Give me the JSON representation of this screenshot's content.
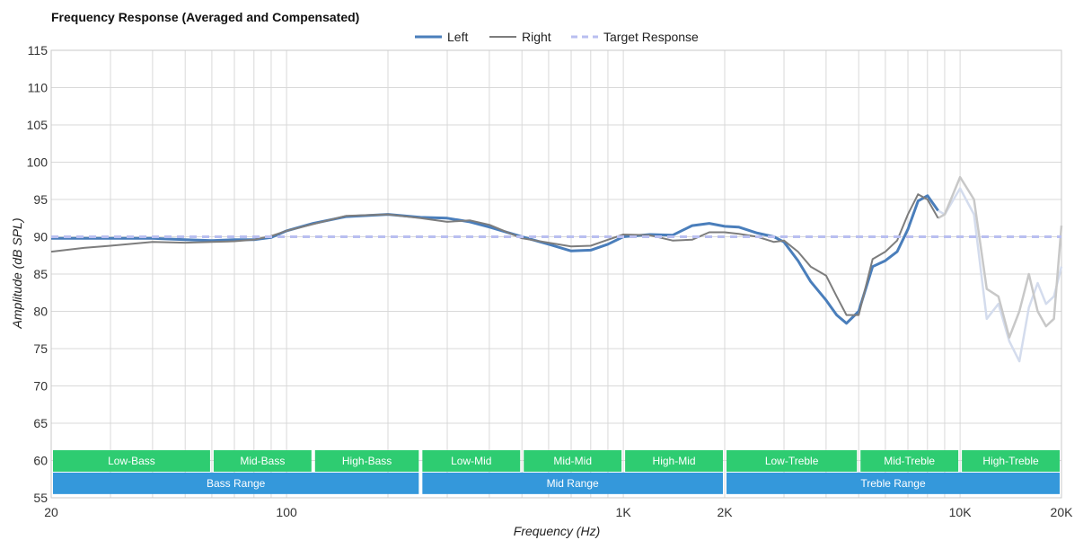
{
  "chart_data": {
    "type": "line",
    "title": "Frequency Response (Averaged and Compensated)",
    "xlabel": "Frequency (Hz)",
    "ylabel": "Amplitude (dB SPL)",
    "xscale": "log",
    "xlim": [
      20,
      20000
    ],
    "ylim": [
      55,
      115
    ],
    "x_ticks": [
      20,
      100,
      1000,
      2000,
      10000,
      20000
    ],
    "x_tick_labels": [
      "20",
      "100",
      "1K",
      "2K",
      "10K",
      "20K"
    ],
    "y_ticks": [
      55,
      60,
      65,
      70,
      75,
      80,
      85,
      90,
      95,
      100,
      105,
      110,
      115
    ],
    "grid": true,
    "legend_position": "top-center",
    "series": [
      {
        "name": "Left",
        "color": "#4a7ebb",
        "points": [
          [
            20,
            89.8
          ],
          [
            30,
            89.8
          ],
          [
            40,
            89.8
          ],
          [
            50,
            89.6
          ],
          [
            60,
            89.5
          ],
          [
            70,
            89.6
          ],
          [
            80,
            89.6
          ],
          [
            90,
            89.9
          ],
          [
            100,
            90.8
          ],
          [
            120,
            91.8
          ],
          [
            150,
            92.7
          ],
          [
            200,
            93.0
          ],
          [
            250,
            92.6
          ],
          [
            300,
            92.5
          ],
          [
            350,
            92.0
          ],
          [
            400,
            91.3
          ],
          [
            500,
            90.0
          ],
          [
            600,
            89.0
          ],
          [
            700,
            88.1
          ],
          [
            800,
            88.2
          ],
          [
            900,
            89.0
          ],
          [
            1000,
            90.0
          ],
          [
            1200,
            90.3
          ],
          [
            1400,
            90.2
          ],
          [
            1600,
            91.5
          ],
          [
            1800,
            91.8
          ],
          [
            2000,
            91.4
          ],
          [
            2200,
            91.3
          ],
          [
            2500,
            90.5
          ],
          [
            2800,
            90.0
          ],
          [
            3000,
            89.3
          ],
          [
            3300,
            86.8
          ],
          [
            3600,
            84.0
          ],
          [
            4000,
            81.5
          ],
          [
            4300,
            79.5
          ],
          [
            4600,
            78.4
          ],
          [
            5000,
            80.0
          ],
          [
            5500,
            86.0
          ],
          [
            6000,
            86.8
          ],
          [
            6500,
            88.0
          ],
          [
            7000,
            91.0
          ],
          [
            7500,
            94.8
          ],
          [
            8000,
            95.5
          ],
          [
            8600,
            93.5
          ]
        ]
      },
      {
        "name": "Right",
        "color": "#7d7d7d",
        "points": [
          [
            20,
            88.0
          ],
          [
            25,
            88.5
          ],
          [
            30,
            88.8
          ],
          [
            40,
            89.3
          ],
          [
            50,
            89.2
          ],
          [
            60,
            89.3
          ],
          [
            70,
            89.4
          ],
          [
            80,
            89.6
          ],
          [
            90,
            90.1
          ],
          [
            100,
            90.8
          ],
          [
            120,
            91.7
          ],
          [
            150,
            92.8
          ],
          [
            200,
            93.0
          ],
          [
            250,
            92.5
          ],
          [
            300,
            92.0
          ],
          [
            350,
            92.2
          ],
          [
            400,
            91.6
          ],
          [
            500,
            89.8
          ],
          [
            600,
            89.2
          ],
          [
            700,
            88.7
          ],
          [
            800,
            88.8
          ],
          [
            900,
            89.6
          ],
          [
            1000,
            90.3
          ],
          [
            1200,
            90.2
          ],
          [
            1400,
            89.5
          ],
          [
            1600,
            89.6
          ],
          [
            1800,
            90.6
          ],
          [
            2000,
            90.6
          ],
          [
            2200,
            90.4
          ],
          [
            2500,
            90.0
          ],
          [
            2800,
            89.3
          ],
          [
            3000,
            89.5
          ],
          [
            3300,
            88.0
          ],
          [
            3600,
            86.0
          ],
          [
            4000,
            84.8
          ],
          [
            4300,
            82.0
          ],
          [
            4600,
            79.5
          ],
          [
            5000,
            79.5
          ],
          [
            5500,
            87.0
          ],
          [
            6000,
            88.0
          ],
          [
            6500,
            89.5
          ],
          [
            7000,
            93.0
          ],
          [
            7500,
            95.7
          ],
          [
            8000,
            95.0
          ],
          [
            8600,
            92.5
          ]
        ]
      },
      {
        "name": "Target Response",
        "color": "#b9bff0",
        "points": [
          [
            20,
            90
          ],
          [
            20000,
            90
          ]
        ]
      }
    ],
    "faded_extensions": [
      {
        "series": "Left",
        "color": "#d4dced",
        "points": [
          [
            8600,
            93.5
          ],
          [
            9000,
            93.0
          ],
          [
            10000,
            96.5
          ],
          [
            11000,
            93.0
          ],
          [
            12000,
            79.0
          ],
          [
            13000,
            81.0
          ],
          [
            14000,
            76.0
          ],
          [
            15000,
            73.3
          ],
          [
            16000,
            80.5
          ],
          [
            17000,
            83.8
          ],
          [
            18000,
            81.0
          ],
          [
            19000,
            82.0
          ],
          [
            20000,
            86.0
          ]
        ]
      },
      {
        "series": "Right",
        "color": "#c8c8c8",
        "points": [
          [
            8600,
            92.5
          ],
          [
            9000,
            93.0
          ],
          [
            10000,
            98.0
          ],
          [
            11000,
            95.0
          ],
          [
            12000,
            83.0
          ],
          [
            13000,
            82.0
          ],
          [
            14000,
            76.5
          ],
          [
            15000,
            80.0
          ],
          [
            16000,
            85.0
          ],
          [
            17000,
            80.0
          ],
          [
            18000,
            78.0
          ],
          [
            19000,
            79.0
          ],
          [
            20000,
            91.5
          ]
        ]
      }
    ],
    "bands": [
      {
        "label": "Low-Bass",
        "from": 20,
        "to": 60,
        "row": 1,
        "color": "#2ecc71"
      },
      {
        "label": "Mid-Bass",
        "from": 60,
        "to": 120,
        "row": 1,
        "color": "#2ecc71"
      },
      {
        "label": "High-Bass",
        "from": 120,
        "to": 250,
        "row": 1,
        "color": "#2ecc71"
      },
      {
        "label": "Low-Mid",
        "from": 250,
        "to": 500,
        "row": 1,
        "color": "#2ecc71"
      },
      {
        "label": "Mid-Mid",
        "from": 500,
        "to": 1000,
        "row": 1,
        "color": "#2ecc71"
      },
      {
        "label": "High-Mid",
        "from": 1000,
        "to": 2000,
        "row": 1,
        "color": "#2ecc71"
      },
      {
        "label": "Low-Treble",
        "from": 2000,
        "to": 5000,
        "row": 1,
        "color": "#2ecc71"
      },
      {
        "label": "Mid-Treble",
        "from": 5000,
        "to": 10000,
        "row": 1,
        "color": "#2ecc71"
      },
      {
        "label": "High-Treble",
        "from": 10000,
        "to": 20000,
        "row": 1,
        "color": "#2ecc71"
      },
      {
        "label": "Bass Range",
        "from": 20,
        "to": 250,
        "row": 2,
        "color": "#3498db"
      },
      {
        "label": "Mid Range",
        "from": 250,
        "to": 2000,
        "row": 2,
        "color": "#3498db"
      },
      {
        "label": "Treble Range",
        "from": 2000,
        "to": 20000,
        "row": 2,
        "color": "#3498db"
      }
    ]
  }
}
